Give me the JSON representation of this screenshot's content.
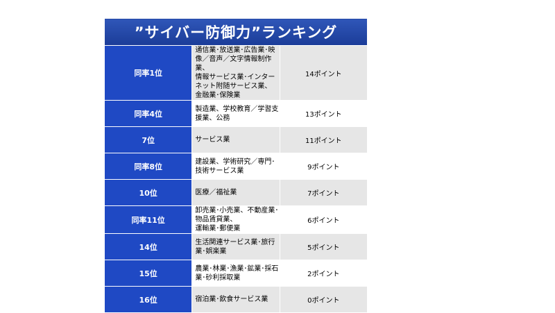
{
  "title": "”サイバー防御力”ランキング",
  "rows": [
    {
      "rank": "同率1位",
      "industry": "通信業･放送業･広告業･映像／音声／文字情報制作業、\n情報サービス業･インターネット附随サービス業、\n金融業･保険業",
      "points": "14ポイント"
    },
    {
      "rank": "同率4位",
      "industry": "製造業、学校教育／学習支援業、公務",
      "points": "13ポイント"
    },
    {
      "rank": "7位",
      "industry": "サービス業",
      "points": "11ポイント"
    },
    {
      "rank": "同率8位",
      "industry": "建設業、学術研究／専門･技術サービス業",
      "points": "9ポイント"
    },
    {
      "rank": "10位",
      "industry": "医療／福祉業",
      "points": "7ポイント"
    },
    {
      "rank": "同率11位",
      "industry": "卸売業･小売業、不動産業･物品賃貸業、\n運輸業･郵便業",
      "points": "6ポイント"
    },
    {
      "rank": "14位",
      "industry": "生活関連サービス業･旅行業･娯楽業",
      "points": "5ポイント"
    },
    {
      "rank": "15位",
      "industry": "農業･林業･漁業･鉱業･採石業･砂利採取業",
      "points": "2ポイント"
    },
    {
      "rank": "16位",
      "industry": "宿泊業･飲食サービス業",
      "points": "0ポイント"
    }
  ]
}
